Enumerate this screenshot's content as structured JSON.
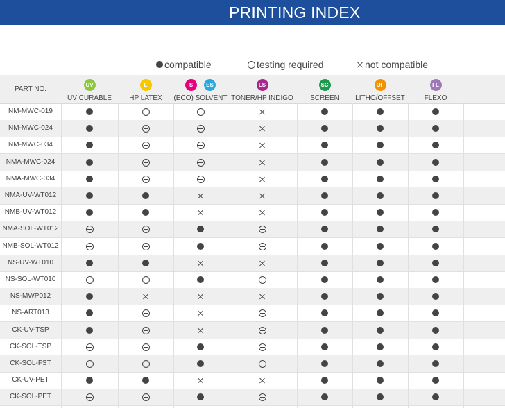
{
  "header": {
    "title": "PRINTING INDEX"
  },
  "legend": [
    {
      "symbol": "compatible",
      "label": "compatible"
    },
    {
      "symbol": "testing",
      "label": "testing required"
    },
    {
      "symbol": "not",
      "label": "not compatible"
    }
  ],
  "table": {
    "part_no_header": "PART NO.",
    "columns": [
      {
        "label": "UV CURABLE",
        "badges": [
          {
            "code": "UV",
            "color": "#8dc63f"
          }
        ]
      },
      {
        "label": "HP LATEX",
        "badges": [
          {
            "code": "L",
            "color": "#f5c800"
          }
        ]
      },
      {
        "label": "(ECO) SOLVENT",
        "badges": [
          {
            "code": "S",
            "color": "#e6007e"
          },
          {
            "code": "ES",
            "color": "#29a8e0"
          }
        ]
      },
      {
        "label": "TONER/HP INDIGO",
        "badges": [
          {
            "code": "LS",
            "color": "#a4288d"
          }
        ]
      },
      {
        "label": "SCREEN",
        "badges": [
          {
            "code": "SC",
            "color": "#1a9a4a"
          }
        ]
      },
      {
        "label": "LITHO/OFFSET",
        "badges": [
          {
            "code": "OF",
            "color": "#f39200"
          }
        ]
      },
      {
        "label": "FLEXO",
        "badges": [
          {
            "code": "FL",
            "color": "#a078b8"
          }
        ]
      }
    ],
    "rows": [
      {
        "part": "NM-MWC-019",
        "values": [
          "compatible",
          "testing",
          "testing",
          "not",
          "compatible",
          "compatible",
          "compatible"
        ]
      },
      {
        "part": "NM-MWC-024",
        "values": [
          "compatible",
          "testing",
          "testing",
          "not",
          "compatible",
          "compatible",
          "compatible"
        ]
      },
      {
        "part": "NM-MWC-034",
        "values": [
          "compatible",
          "testing",
          "testing",
          "not",
          "compatible",
          "compatible",
          "compatible"
        ]
      },
      {
        "part": "NMA-MWC-024",
        "values": [
          "compatible",
          "testing",
          "testing",
          "not",
          "compatible",
          "compatible",
          "compatible"
        ]
      },
      {
        "part": "NMA-MWC-034",
        "values": [
          "compatible",
          "testing",
          "testing",
          "not",
          "compatible",
          "compatible",
          "compatible"
        ]
      },
      {
        "part": "NMA-UV-WT012",
        "values": [
          "compatible",
          "compatible",
          "not",
          "not",
          "compatible",
          "compatible",
          "compatible"
        ]
      },
      {
        "part": "NMB-UV-WT012",
        "values": [
          "compatible",
          "compatible",
          "not",
          "not",
          "compatible",
          "compatible",
          "compatible"
        ]
      },
      {
        "part": "NMA-SOL-WT012",
        "values": [
          "testing",
          "testing",
          "compatible",
          "testing",
          "compatible",
          "compatible",
          "compatible"
        ]
      },
      {
        "part": "NMB-SOL-WT012",
        "values": [
          "testing",
          "testing",
          "compatible",
          "testing",
          "compatible",
          "compatible",
          "compatible"
        ]
      },
      {
        "part": "NS-UV-WT010",
        "values": [
          "compatible",
          "compatible",
          "not",
          "not",
          "compatible",
          "compatible",
          "compatible"
        ]
      },
      {
        "part": "NS-SOL-WT010",
        "values": [
          "testing",
          "testing",
          "compatible",
          "testing",
          "compatible",
          "compatible",
          "compatible"
        ]
      },
      {
        "part": "NS-MWP012",
        "values": [
          "compatible",
          "not",
          "not",
          "not",
          "compatible",
          "compatible",
          "compatible"
        ]
      },
      {
        "part": "NS-ART013",
        "values": [
          "compatible",
          "testing",
          "not",
          "testing",
          "compatible",
          "compatible",
          "compatible"
        ]
      },
      {
        "part": "CK-UV-TSP",
        "values": [
          "compatible",
          "testing",
          "not",
          "testing",
          "compatible",
          "compatible",
          "compatible"
        ]
      },
      {
        "part": "CK-SOL-TSP",
        "values": [
          "testing",
          "testing",
          "compatible",
          "testing",
          "compatible",
          "compatible",
          "compatible"
        ]
      },
      {
        "part": "CK-SOL-FST",
        "values": [
          "testing",
          "testing",
          "compatible",
          "testing",
          "compatible",
          "compatible",
          "compatible"
        ]
      },
      {
        "part": "CK-UV-PET",
        "values": [
          "compatible",
          "compatible",
          "not",
          "not",
          "compatible",
          "compatible",
          "compatible"
        ]
      },
      {
        "part": "CK-SOL-PET",
        "values": [
          "testing",
          "testing",
          "compatible",
          "testing",
          "compatible",
          "compatible",
          "compatible"
        ]
      }
    ]
  }
}
